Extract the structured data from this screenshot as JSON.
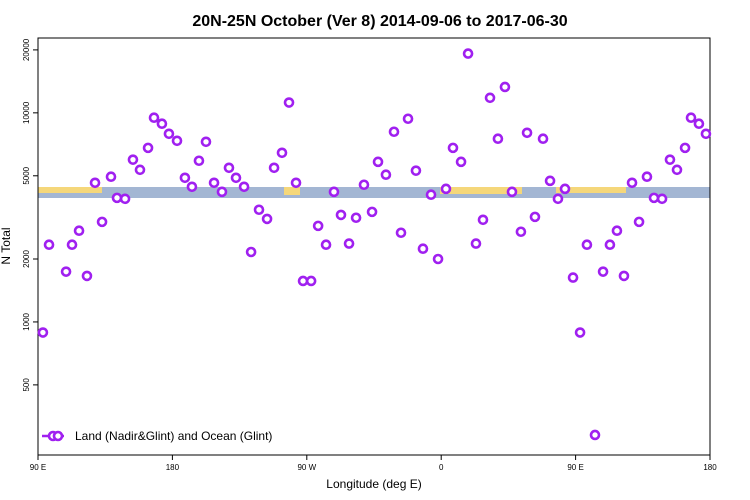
{
  "chart_data": {
    "type": "scatter",
    "title": "20N-25N October (Ver 8)   2014-09-06 to 2017-06-30",
    "x_label": "Longitude (deg E)",
    "y_label": "N Total",
    "log_y": true,
    "legend": "bottom-left",
    "xlim": [
      90,
      540
    ],
    "ylim": [
      231,
      22800
    ],
    "xticks": [
      {
        "value": 90,
        "label": "90 E"
      },
      180,
      {
        "value": 270,
        "label": "90 W"
      },
      {
        "value": 360,
        "label": "0"
      },
      {
        "value": 450,
        "label": "90 E"
      },
      {
        "value": 540,
        "label": "180"
      }
    ],
    "yticks": [
      500,
      1000,
      2000,
      5000,
      10000,
      20000
    ],
    "series": [
      {
        "name": "Land (Nadir&Glint) and Ocean (Glint)",
        "color": "#a020f0",
        "x": [
          93.3,
          97.4,
          108.8,
          112.8,
          117.5,
          122.8,
          128.2,
          132.9,
          138.9,
          142.9,
          148.3,
          153.6,
          158.3,
          163.7,
          167.7,
          173,
          177.7,
          183.1,
          188.4,
          193.1,
          197.8,
          202.5,
          207.9,
          213.2,
          217.9,
          222.6,
          228,
          232.7,
          238,
          243.4,
          248.1,
          253.4,
          258.1,
          262.8,
          267.5,
          272.9,
          277.6,
          282.9,
          288.2,
          292.9,
          298.3,
          303,
          308.3,
          313.7,
          317.7,
          323,
          328.4,
          333.1,
          337.8,
          343.1,
          347.8,
          353.2,
          357.9,
          363.2,
          367.9,
          373.3,
          378,
          383.3,
          388,
          392.7,
          398,
          402.7,
          407.4,
          413.4,
          417.5,
          422.8,
          428.2,
          432.9,
          438.2,
          442.9,
          448.3,
          453,
          457.6,
          463,
          468.4,
          473,
          477.7,
          482.4,
          487.8,
          492.5,
          497.8,
          502.5,
          507.9,
          513.2,
          517.9,
          523.3,
          527.3,
          532.6,
          537.3
        ],
        "values": [
          890,
          2340,
          1740,
          2340,
          2730,
          1660,
          4630,
          3010,
          4950,
          3920,
          3880,
          5970,
          5340,
          6800,
          9480,
          8870,
          7940,
          7350,
          4890,
          4430,
          5900,
          7270,
          4630,
          4190,
          5460,
          4890,
          4430,
          2160,
          3440,
          3110,
          5460,
          6440,
          11200,
          4630,
          1570,
          1570,
          2880,
          2340,
          4190,
          3250,
          2370,
          3150,
          4530,
          3360,
          5830,
          5060,
          8120,
          2670,
          9370,
          5290,
          2240,
          4060,
          2000,
          4330,
          6800,
          5830,
          19200,
          2370,
          3080,
          11800,
          7520,
          13300,
          4190,
          2700,
          8030,
          3180,
          7520,
          4730,
          3880,
          4330,
          1630,
          890,
          2340,
          288,
          1740,
          2340,
          2730,
          1660,
          4630,
          3010,
          4950,
          3920,
          3880,
          5970,
          5340,
          6800,
          9480,
          8870,
          7940
        ]
      }
    ]
  }
}
